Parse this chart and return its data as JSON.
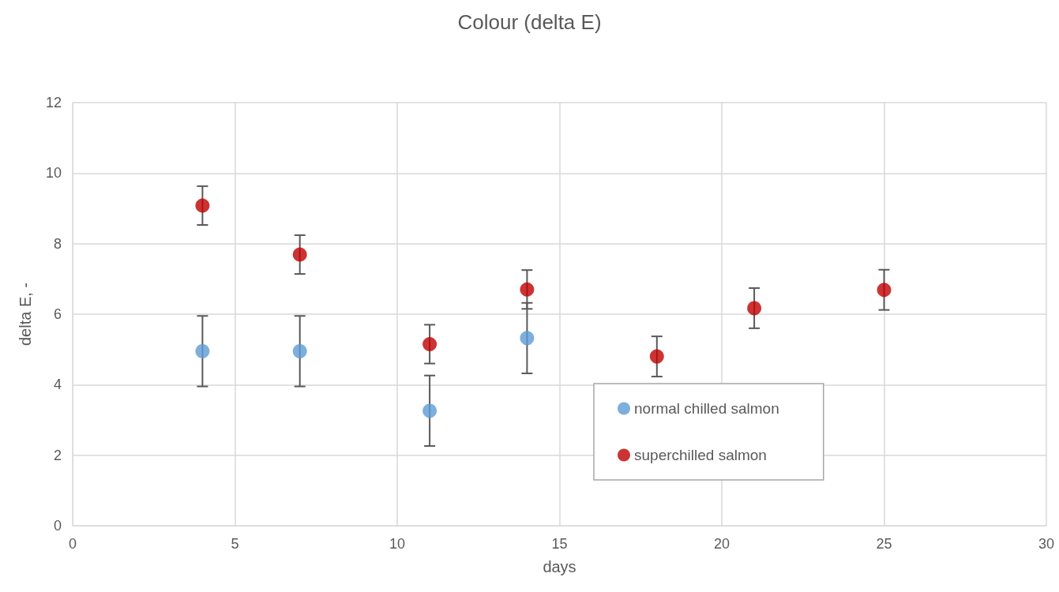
{
  "chart_data": {
    "type": "scatter",
    "title": "Colour (delta E)",
    "xlabel": "days",
    "ylabel": "delta E, -",
    "xlim": [
      0,
      30
    ],
    "xticks": [
      0,
      5,
      10,
      15,
      20,
      25,
      30
    ],
    "ylim": [
      0,
      12
    ],
    "yticks": [
      0,
      2,
      4,
      6,
      8,
      10,
      12
    ],
    "grid": true,
    "legend": "bottom right",
    "marker": "circle",
    "series": [
      {
        "name": "normal chilled salmon",
        "color": "#5b9bd5",
        "x": [
          4,
          7,
          11,
          14
        ],
        "values": [
          4.95,
          4.95,
          3.26,
          5.32
        ],
        "errors": [
          1.0,
          1.0,
          1.0,
          1.0
        ]
      },
      {
        "name": "superchilled salmon",
        "color": "#c00000",
        "x": [
          4,
          7,
          11,
          14,
          18,
          21,
          25
        ],
        "values": [
          9.08,
          7.69,
          5.15,
          6.7,
          4.8,
          6.17,
          6.69
        ],
        "errors": [
          0.55,
          0.55,
          0.55,
          0.55,
          0.57,
          0.57,
          0.57
        ]
      }
    ]
  }
}
